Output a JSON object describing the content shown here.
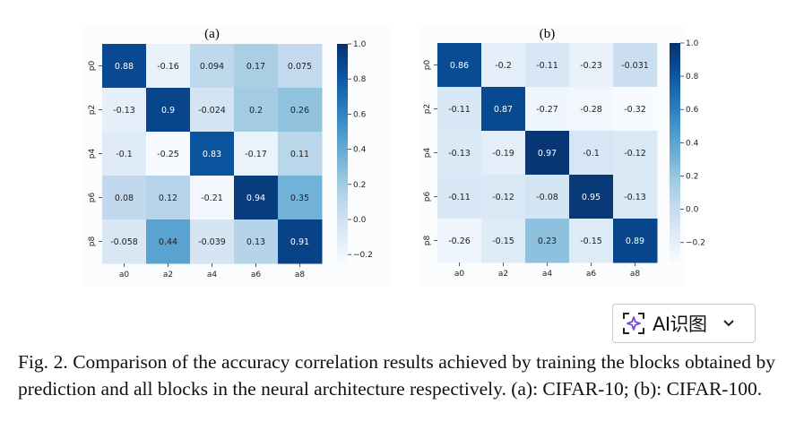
{
  "chart_data": [
    {
      "type": "heatmap",
      "title": "(a)",
      "row_labels": [
        "p0",
        "p2",
        "p4",
        "p6",
        "p8"
      ],
      "col_labels": [
        "a0",
        "a2",
        "a4",
        "a6",
        "a8"
      ],
      "values": [
        [
          0.88,
          -0.16,
          0.094,
          0.17,
          0.075
        ],
        [
          -0.13,
          0.9,
          -0.024,
          0.2,
          0.26
        ],
        [
          -0.1,
          -0.25,
          0.83,
          -0.17,
          0.11
        ],
        [
          0.08,
          0.12,
          -0.21,
          0.94,
          0.35
        ],
        [
          -0.058,
          0.44,
          -0.039,
          0.13,
          0.91
        ]
      ],
      "cell_labels": [
        [
          "0.88",
          "-0.16",
          "0.094",
          "0.17",
          "0.075"
        ],
        [
          "-0.13",
          "0.9",
          "-0.024",
          "0.2",
          "0.26"
        ],
        [
          "-0.1",
          "-0.25",
          "0.83",
          "-0.17",
          "0.11"
        ],
        [
          "0.08",
          "0.12",
          "-0.21",
          "0.94",
          "0.35"
        ],
        [
          "-0.058",
          "0.44",
          "-0.039",
          "0.13",
          "0.91"
        ]
      ],
      "colorbar": {
        "min": -0.25,
        "max": 1.0,
        "ticks": [
          "−0.2",
          "0.0",
          "0.2",
          "0.4",
          "0.6",
          "0.8",
          "1.0"
        ],
        "tick_values": [
          -0.2,
          0.0,
          0.2,
          0.4,
          0.6,
          0.8,
          1.0
        ]
      },
      "colormap": "Blues"
    },
    {
      "type": "heatmap",
      "title": "(b)",
      "row_labels": [
        "p0",
        "p2",
        "p4",
        "p6",
        "p8"
      ],
      "col_labels": [
        "a0",
        "a2",
        "a4",
        "a6",
        "a8"
      ],
      "values": [
        [
          0.86,
          -0.2,
          -0.11,
          -0.23,
          -0.031
        ],
        [
          -0.11,
          0.87,
          -0.27,
          -0.28,
          -0.32
        ],
        [
          -0.13,
          -0.19,
          0.97,
          -0.1,
          -0.12
        ],
        [
          -0.11,
          -0.12,
          -0.08,
          0.95,
          -0.13
        ],
        [
          -0.26,
          -0.15,
          0.23,
          -0.15,
          0.89
        ]
      ],
      "cell_labels": [
        [
          "0.86",
          "-0.2",
          "-0.11",
          "-0.23",
          "-0.031"
        ],
        [
          "-0.11",
          "0.87",
          "-0.27",
          "-0.28",
          "-0.32"
        ],
        [
          "-0.13",
          "-0.19",
          "0.97",
          "-0.1",
          "-0.12"
        ],
        [
          "-0.11",
          "-0.12",
          "-0.08",
          "0.95",
          "-0.13"
        ],
        [
          "-0.26",
          "-0.15",
          "0.23",
          "-0.15",
          "0.89"
        ]
      ],
      "colorbar": {
        "min": -0.32,
        "max": 1.0,
        "ticks": [
          "−0.2",
          "0.0",
          "0.2",
          "0.4",
          "0.6",
          "0.8",
          "1.0"
        ],
        "tick_values": [
          -0.2,
          0.0,
          0.2,
          0.4,
          0.6,
          0.8,
          1.0
        ]
      },
      "colormap": "Blues"
    }
  ],
  "ai_button": {
    "label": "AI识图",
    "icon": "sparkle-scan-icon",
    "chevron": "chevron-down-icon",
    "accent": "#7b3fe4"
  },
  "caption": "Fig. 2.  Comparison of the accuracy correlation results achieved by training the blocks obtained by prediction and all blocks in the neural architecture respectively. (a): CIFAR-10; (b): CIFAR-100."
}
